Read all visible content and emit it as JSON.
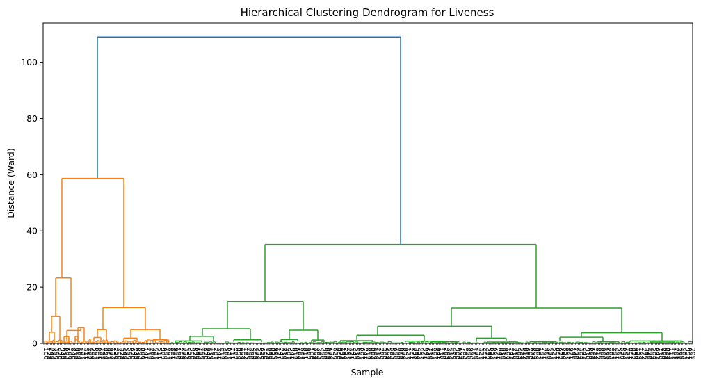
{
  "chart_data": {
    "type": "dendrogram",
    "title": "Hierarchical Clustering Dendrogram for Liveness",
    "xlabel": "Sample",
    "ylabel": "Distance (Ward)",
    "ylim": [
      0,
      114
    ],
    "yticks": [
      0,
      20,
      40,
      60,
      80,
      100
    ],
    "grid": false,
    "legend": "none",
    "colors": {
      "root": "#1f77b4",
      "cluster_1": "#ff7f0e",
      "cluster_2": "#2ca02c"
    },
    "leaf_count": 480,
    "leaf_labels_note": "x tick labels are overlapping numeric sample indices and are unreadable",
    "merges": [
      {
        "left": 0.068,
        "right": 0.058,
        "height": 109.0,
        "color": "root"
      },
      {
        "left": 0.009,
        "right": 0.127,
        "height": 58.7,
        "color": "cluster_1"
      },
      {
        "left": 0.008,
        "right": 0.044,
        "height": 23.3,
        "color": "cluster_1"
      },
      {
        "left": 0.025,
        "right": 0.045,
        "height": 12.8,
        "color": "cluster_1"
      },
      {
        "left": 0.005,
        "right": 0.006,
        "height": 9.6,
        "color": "cluster_1"
      },
      {
        "left": 0.003,
        "right": 0.004,
        "height": 4.0,
        "color": "cluster_1"
      },
      {
        "left": 0.01,
        "right": 0.034,
        "height": 5.6,
        "color": "cluster_1"
      },
      {
        "left": 0.01,
        "right": 0.004,
        "height": 4.9,
        "color": "cluster_1"
      },
      {
        "left": 0.034,
        "right": 0.056,
        "height": 4.9,
        "color": "cluster_1"
      },
      {
        "left": 0.004,
        "right": 0.005,
        "height": 2.1,
        "color": "cluster_1"
      },
      {
        "left": 0.035,
        "right": 0.07,
        "height": 35.2,
        "color": "cluster_2"
      },
      {
        "left": 0.014,
        "right": 0.019,
        "height": 14.9,
        "color": "cluster_2"
      },
      {
        "left": 0.023,
        "right": 0.013,
        "height": 12.6,
        "color": "cluster_2"
      },
      {
        "left": 0.012,
        "right": 0.011,
        "height": 6.1,
        "color": "cluster_2"
      },
      {
        "left": 0.005,
        "right": 0.006,
        "height": 5.2,
        "color": "cluster_2"
      },
      {
        "left": 0.004,
        "right": 0.005,
        "height": 4.7,
        "color": "cluster_2"
      },
      {
        "left": 0.009,
        "right": 0.01,
        "height": 3.8,
        "color": "cluster_2"
      },
      {
        "left": 0.007,
        "right": 0.006,
        "height": 2.9,
        "color": "cluster_2"
      },
      {
        "left": 0.003,
        "right": 0.004,
        "height": 2.5,
        "color": "cluster_2"
      },
      {
        "left": 0.005,
        "right": 0.005,
        "height": 2.2,
        "color": "cluster_2"
      },
      {
        "left": 0.003,
        "right": 0.003,
        "height": 1.9,
        "color": "cluster_2"
      },
      {
        "left": 0.004,
        "right": 0.004,
        "height": 1.4,
        "color": "cluster_2"
      },
      {
        "left": 0.006,
        "right": 0.004,
        "height": 1.3,
        "color": "cluster_2"
      },
      {
        "left": 0.008,
        "right": 0.01,
        "height": 1.0,
        "color": "cluster_2"
      }
    ]
  }
}
